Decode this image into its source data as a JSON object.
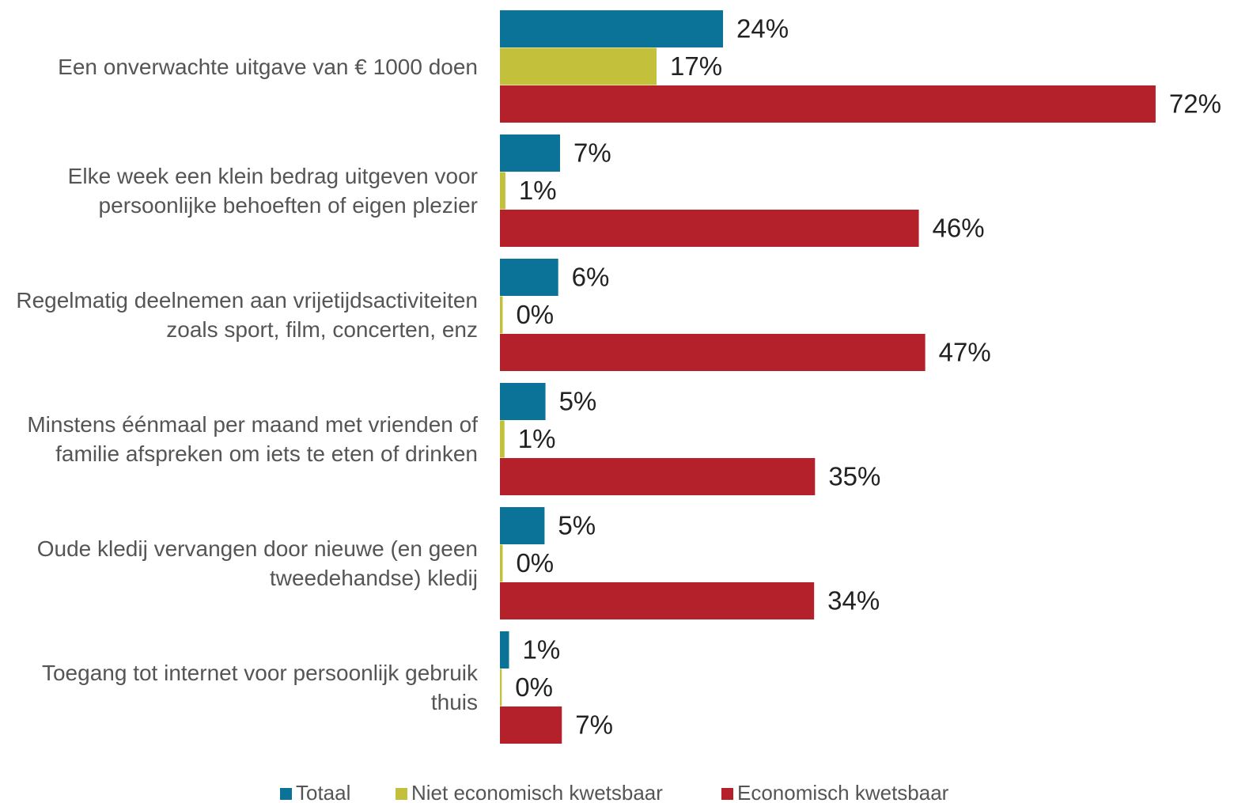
{
  "chart_data": {
    "type": "bar",
    "orientation": "horizontal",
    "categories": [
      "Een onverwachte uitgave van € 1000 doen",
      "Elke week een klein bedrag uitgeven voor persoonlijke behoeften of eigen plezier",
      "Regelmatig deelnemen aan vrijetijdsactiviteiten zoals sport, film, concerten, enz",
      "Minstens éénmaal per maand met vrienden of familie afspreken om iets te eten of drinken",
      "Oude kledij vervangen door nieuwe (en geen tweedehandse) kledij",
      "Toegang tot internet voor persoonlijk gebruik thuis"
    ],
    "series": [
      {
        "name": "Totaal",
        "color": "#0b7397",
        "values": [
          24.5,
          6.6,
          6.4,
          5.0,
          4.9,
          1.0
        ],
        "value_labels": [
          "24%",
          "7%",
          "6%",
          "5%",
          "5%",
          "1%"
        ]
      },
      {
        "name": "Niet economisch kwetsbaar",
        "color": "#c3c13b",
        "values": [
          17.2,
          0.6,
          0.3,
          0.5,
          0.3,
          0.2
        ],
        "value_labels": [
          "17%",
          "1%",
          "0%",
          "1%",
          "0%",
          "0%"
        ]
      },
      {
        "name": "Economisch kwetsbaar",
        "color": "#b5212a",
        "values": [
          72.0,
          46.0,
          46.7,
          34.6,
          34.5,
          6.8
        ],
        "value_labels": [
          "72%",
          "46%",
          "47%",
          "35%",
          "34%",
          "7%"
        ]
      }
    ],
    "xlim": [
      0,
      80
    ],
    "legend": "bottom"
  }
}
